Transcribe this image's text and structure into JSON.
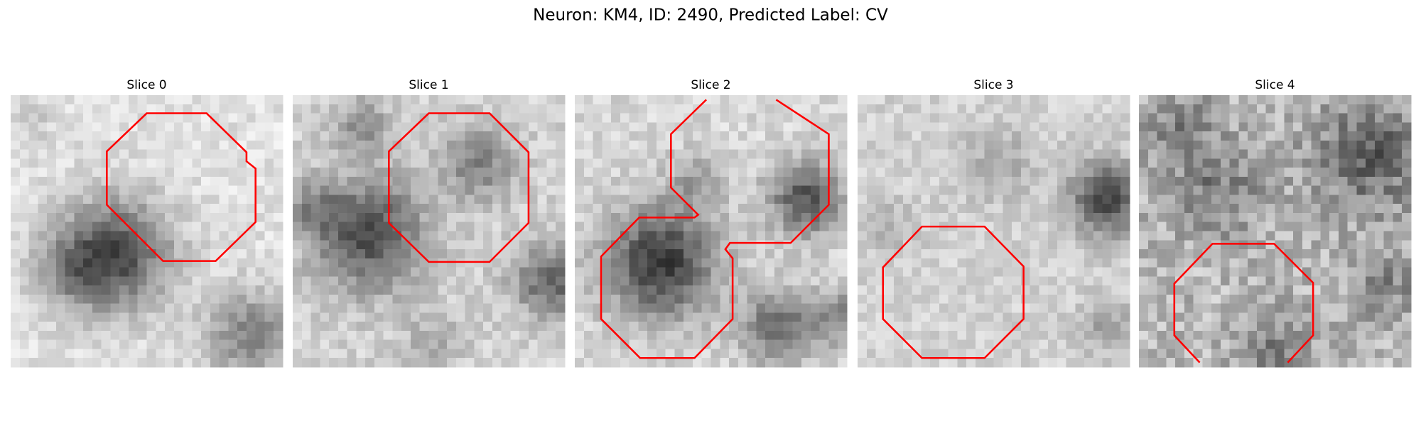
{
  "title": "Neuron: KM4, ID: 2490, Predicted Label: CV",
  "panels": [
    {
      "title": "Slice 0"
    },
    {
      "title": "Slice 1"
    },
    {
      "title": "Slice 2"
    },
    {
      "title": "Slice 3"
    },
    {
      "title": "Slice 4"
    }
  ]
}
